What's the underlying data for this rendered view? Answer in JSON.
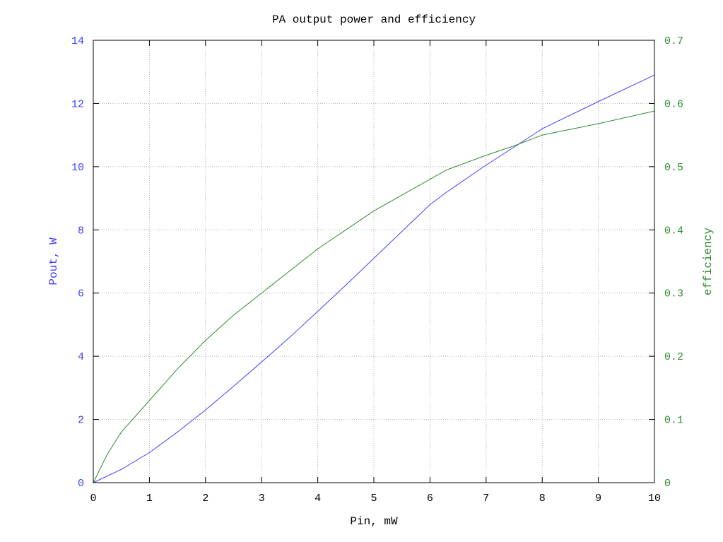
{
  "chart_data": {
    "type": "line",
    "title": "PA output power and efficiency",
    "xlabel": "Pin, mW",
    "ylabel_left": "Pout, W",
    "ylabel_right": "efficiency",
    "xlim": [
      0,
      10
    ],
    "ylim_left": [
      0,
      14
    ],
    "ylim_right": [
      0,
      0.7
    ],
    "x_ticks": [
      "0",
      "1",
      "2",
      "3",
      "4",
      "5",
      "6",
      "7",
      "8",
      "9",
      "10"
    ],
    "y_left_ticks": [
      "0",
      "2",
      "4",
      "6",
      "8",
      "10",
      "12",
      "14"
    ],
    "y_right_ticks": [
      "0",
      "0.1",
      "0.2",
      "0.3",
      "0.4",
      "0.5",
      "0.6",
      "0.7"
    ],
    "grid": true,
    "colors": {
      "pout": "#4040ff",
      "efficiency": "#2e8b2e",
      "axes": "#000000"
    },
    "series": [
      {
        "axis": "left",
        "x": [
          0,
          0.5,
          1,
          1.5,
          2,
          2.5,
          3,
          3.5,
          4,
          4.5,
          5,
          5.5,
          6,
          6.3,
          7,
          7.5,
          8,
          9,
          10
        ],
        "y": [
          0,
          0.42,
          0.95,
          1.6,
          2.3,
          3.05,
          3.82,
          4.6,
          5.42,
          6.25,
          7.1,
          7.95,
          8.8,
          9.2,
          10.05,
          10.62,
          11.2,
          12.06,
          12.9
        ]
      },
      {
        "axis": "right",
        "x": [
          0,
          0.25,
          0.5,
          1,
          1.5,
          2,
          2.5,
          3,
          3.5,
          4,
          4.5,
          5,
          5.5,
          6,
          6.3,
          7,
          7.5,
          8,
          9,
          10
        ],
        "y": [
          0,
          0.045,
          0.08,
          0.13,
          0.18,
          0.225,
          0.265,
          0.3,
          0.335,
          0.37,
          0.4,
          0.43,
          0.455,
          0.48,
          0.495,
          0.518,
          0.533,
          0.55,
          0.568,
          0.588
        ]
      }
    ]
  }
}
